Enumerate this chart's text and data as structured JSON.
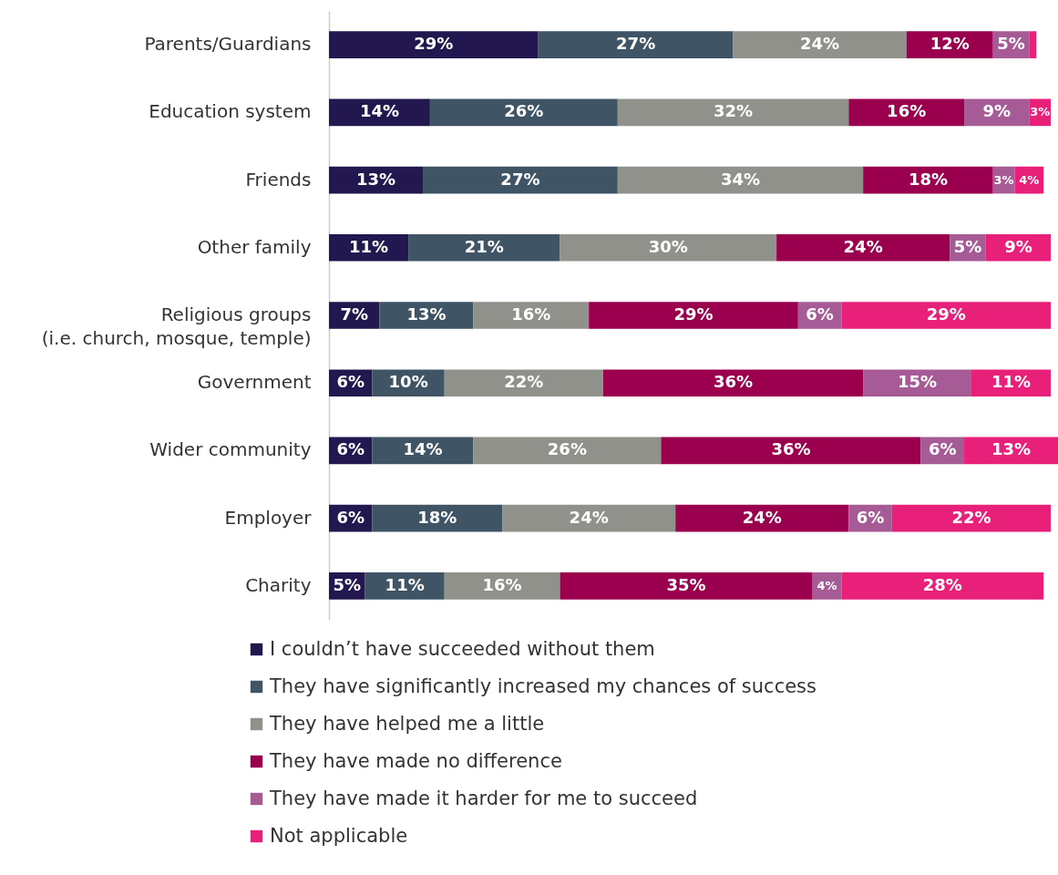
{
  "chart_data": {
    "type": "bar",
    "orientation": "horizontal",
    "stacked": true,
    "legend": "bottom",
    "grid": false,
    "tick_labels": "y",
    "xlim": [
      0,
      101
    ],
    "categories": [
      "Parents/Guardians",
      "Education system",
      "Friends",
      "Other family",
      "Religious groups\n(i.e. church, mosque, temple)",
      "Government",
      "Wider community",
      "Employer",
      "Charity"
    ],
    "series": [
      {
        "name": "I couldn’t have succeeded without them",
        "color": "#22184f",
        "values": [
          29,
          14,
          13,
          11,
          7,
          6,
          6,
          6,
          5
        ],
        "value_labels": [
          "29%",
          "14%",
          "13%",
          "11%",
          "7%",
          "6%",
          "6%",
          "6%",
          "5%"
        ]
      },
      {
        "name": "They have significantly increased my chances of success",
        "color": "#3f5465",
        "values": [
          27,
          26,
          27,
          21,
          13,
          10,
          14,
          18,
          11
        ],
        "value_labels": [
          "27%",
          "26%",
          "27%",
          "21%",
          "13%",
          "10%",
          "14%",
          "18%",
          "11%"
        ]
      },
      {
        "name": "They have helped me a little",
        "color": "#8f918a",
        "values": [
          24,
          32,
          34,
          30,
          16,
          22,
          26,
          24,
          16
        ],
        "value_labels": [
          "24%",
          "32%",
          "34%",
          "30%",
          "16%",
          "22%",
          "26%",
          "24%",
          "16%"
        ]
      },
      {
        "name": "They have made no difference",
        "color": "#9b004f",
        "values": [
          12,
          16,
          18,
          24,
          29,
          36,
          36,
          24,
          35
        ],
        "value_labels": [
          "12%",
          "16%",
          "18%",
          "24%",
          "29%",
          "36%",
          "36%",
          "24%",
          "35%"
        ]
      },
      {
        "name": "They have made it harder for me to succeed",
        "color": "#a65b96",
        "values": [
          5,
          9,
          3,
          5,
          6,
          15,
          6,
          6,
          4
        ],
        "value_labels": [
          "5%",
          "9%",
          "3%",
          "5%",
          "6%",
          "15%",
          "6%",
          "6%",
          "4%"
        ]
      },
      {
        "name": "Not applicable",
        "color": "#e8207a",
        "values": [
          1,
          3,
          4,
          9,
          29,
          11,
          13,
          22,
          28
        ],
        "value_labels": [
          null,
          "3%",
          "4%",
          "9%",
          "29%",
          "11%",
          "13%",
          "22%",
          "28%"
        ]
      }
    ]
  }
}
